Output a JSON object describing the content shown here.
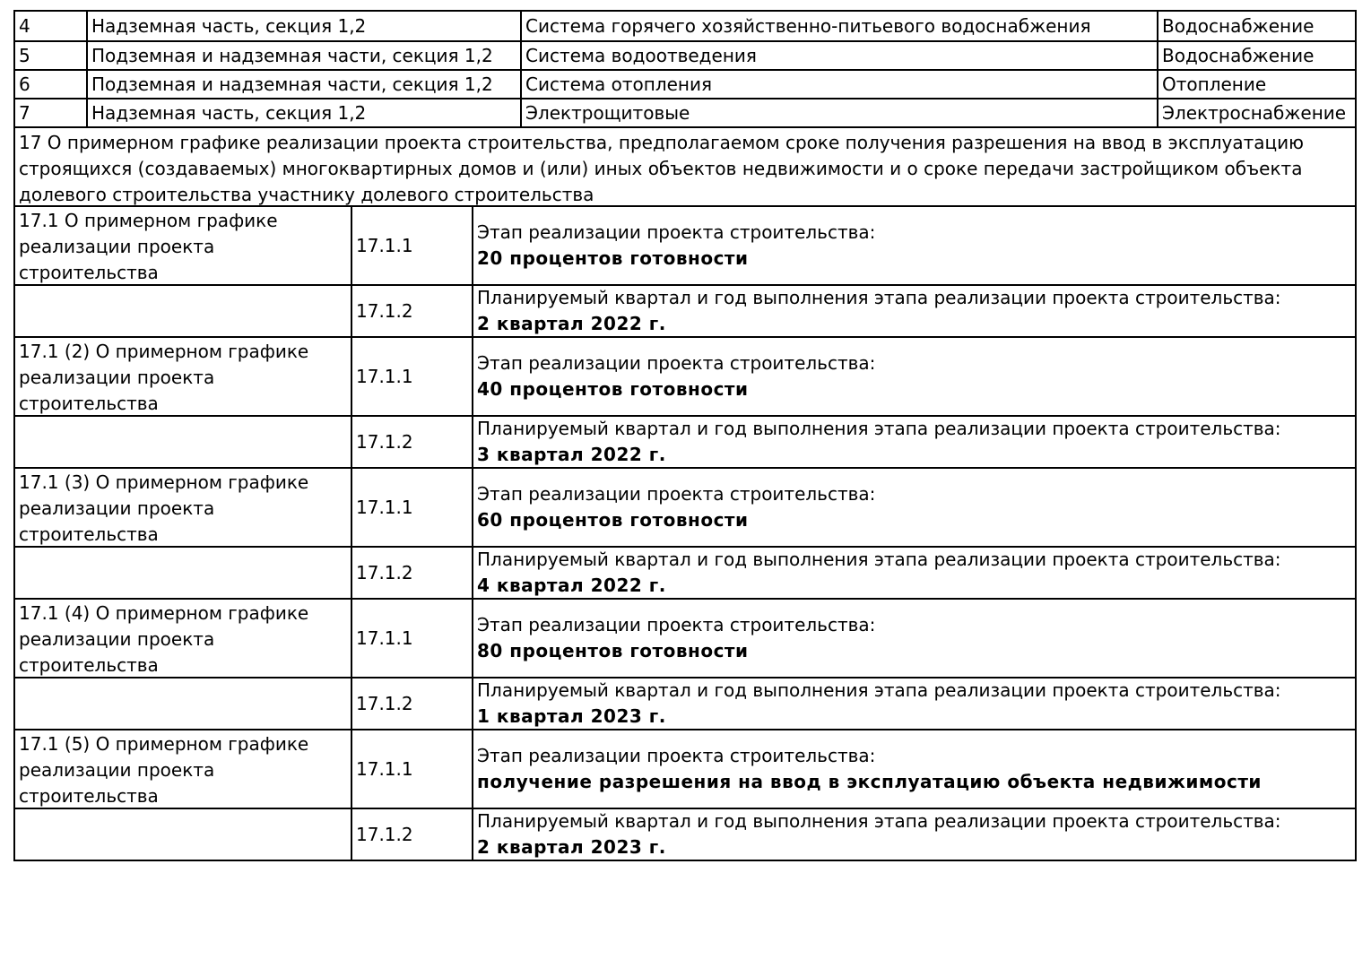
{
  "page": {
    "background_color": "#ffffff",
    "text_color": "#000000",
    "border_color": "#000000"
  },
  "systems_table": {
    "rows": [
      {
        "num": "4",
        "part": "Надземная часть, секция 1,2",
        "system": "Система горячего хозяйственно-питьевого водоснабжения",
        "category": "Водоснабжение"
      },
      {
        "num": "5",
        "part": "Подземная и надземная части, секция 1,2",
        "system": "Система водоотведения",
        "category": "Водоснабжение"
      },
      {
        "num": "6",
        "part": "Подземная и надземная части, секция 1,2",
        "system": "Система отопления",
        "category": "Отопление"
      },
      {
        "num": "7",
        "part": "Надземная часть, секция 1,2",
        "system": "Электрощитовые",
        "category": "Электроснабжение"
      }
    ]
  },
  "section17": {
    "heading": "17 О примерном графике реализации проекта строительства, предполагаемом сроке получения разрешения на ввод в эксплуатацию строящихся (создаваемых) многоквартирных домов и (или) иных объектов недвижимости и о сроке передачи застройщиком объекта долевого строительства участнику долевого строительства",
    "stage_label": "Этап реализации проекта строительства:",
    "quarter_label": "Планируемый квартал и год выполнения этапа реализации проекта строительства:",
    "blocks": [
      {
        "title": "17.1 О примерном графике реализации проекта строительства",
        "code1": "17.1.1",
        "stage_value": "20 процентов готовности",
        "code2": "17.1.2",
        "quarter_value": "2 квартал 2022 г."
      },
      {
        "title": "17.1 (2) О примерном графике реализации проекта строительства",
        "code1": "17.1.1",
        "stage_value": "40 процентов готовности",
        "code2": "17.1.2",
        "quarter_value": "3 квартал 2022 г."
      },
      {
        "title": "17.1 (3) О примерном графике реализации проекта строительства",
        "code1": "17.1.1",
        "stage_value": "60 процентов готовности",
        "code2": "17.1.2",
        "quarter_value": "4 квартал 2022 г."
      },
      {
        "title": "17.1 (4) О примерном графике реализации проекта строительства",
        "code1": "17.1.1",
        "stage_value": "80 процентов готовности",
        "code2": "17.1.2",
        "quarter_value": "1 квартал 2023 г."
      },
      {
        "title": "17.1 (5) О примерном графике реализации проекта строительства",
        "code1": "17.1.1",
        "stage_value": "получение разрешения на ввод в эксплуатацию объекта недвижимости",
        "code2": "17.1.2",
        "quarter_value": "2 квартал 2023 г."
      }
    ]
  }
}
